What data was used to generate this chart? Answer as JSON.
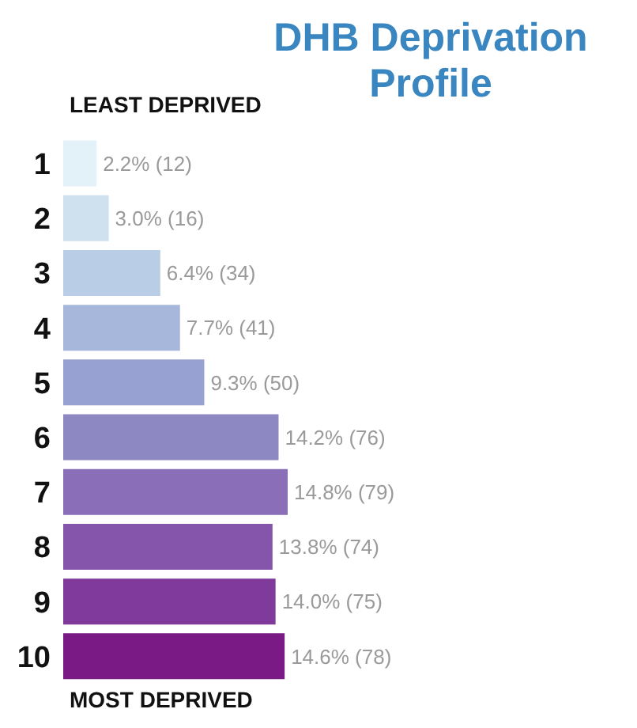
{
  "chart_data": {
    "type": "bar",
    "orientation": "horizontal",
    "title": "DHB Deprivation Profile",
    "annotations": [
      "LEAST DEPRIVED",
      "MOST DEPRIVED"
    ],
    "categories": [
      "1",
      "2",
      "3",
      "4",
      "5",
      "6",
      "7",
      "8",
      "9",
      "10"
    ],
    "values": [
      2.2,
      3.0,
      6.4,
      7.7,
      9.3,
      14.2,
      14.8,
      13.8,
      14.0,
      14.6
    ],
    "value_labels": [
      "2.2% (12)",
      "3.0% (16)",
      "6.4% (34)",
      "7.7% (41)",
      "9.3% (50)",
      "14.2% (76)",
      "14.8% (79)",
      "13.8% (74)",
      "14.0% (75)",
      "14.6% (78)"
    ],
    "colors": [
      "#e3f1f8",
      "#cfe0ef",
      "#b9cde6",
      "#a7b7dc",
      "#98a2d2",
      "#8d88c2",
      "#8a6fb8",
      "#8555ab",
      "#7f3a9c",
      "#7a1a85"
    ]
  }
}
